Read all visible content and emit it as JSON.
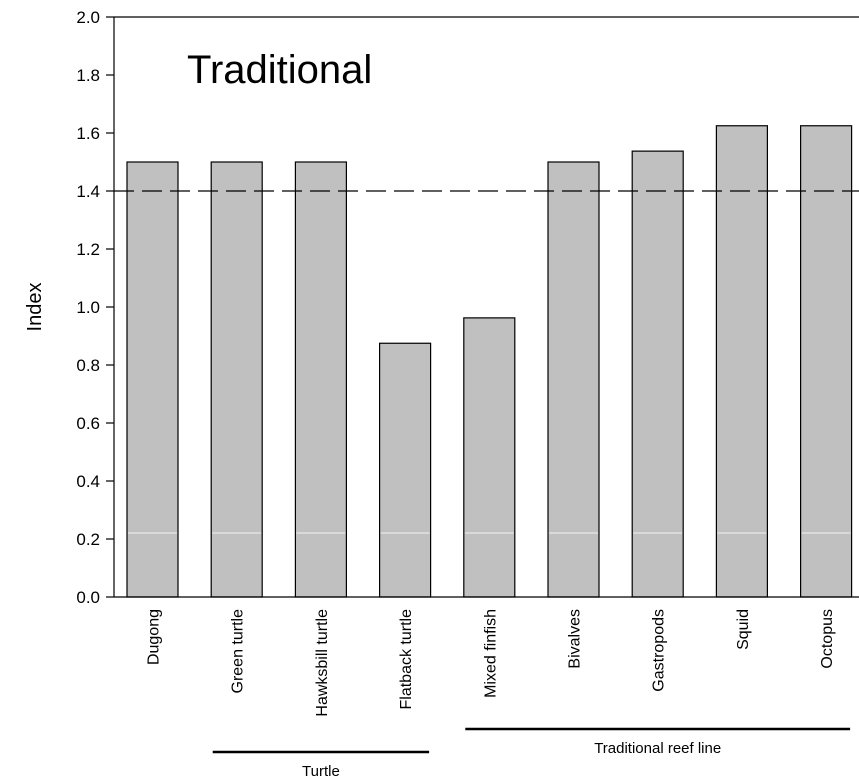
{
  "chart_data": {
    "type": "bar",
    "title": "Traditional",
    "ylabel": "Index",
    "xlabel": "",
    "categories": [
      "Dugong",
      "Green turtle",
      "Hawksbill turtle",
      "Flatback turtle",
      "Mixed finfish",
      "Bivalves",
      "Gastropods",
      "Squid",
      "Octopus"
    ],
    "values": [
      1.5,
      1.5,
      1.5,
      0.875,
      0.9625,
      1.5,
      1.5375,
      1.625,
      1.625
    ],
    "ylim": [
      0.0,
      2.0
    ],
    "yticks": [
      "0.0",
      "0.2",
      "0.4",
      "0.6",
      "0.8",
      "1.0",
      "1.2",
      "1.4",
      "1.6",
      "1.8",
      "2.0"
    ],
    "reference_line": {
      "value": 1.4,
      "style": "dashed"
    },
    "groups": [
      {
        "label": "Turtle",
        "categories": [
          "Green turtle",
          "Hawksbill turtle",
          "Flatback turtle"
        ]
      },
      {
        "label": "Traditional reef line",
        "categories": [
          "Mixed finfish",
          "Bivalves",
          "Gastropods",
          "Squid",
          "Octopus"
        ]
      }
    ],
    "grid": false,
    "colors": {
      "bar_fill": "#c0c0c0",
      "bar_stroke": "#000000",
      "reference_line": "#000000"
    }
  }
}
